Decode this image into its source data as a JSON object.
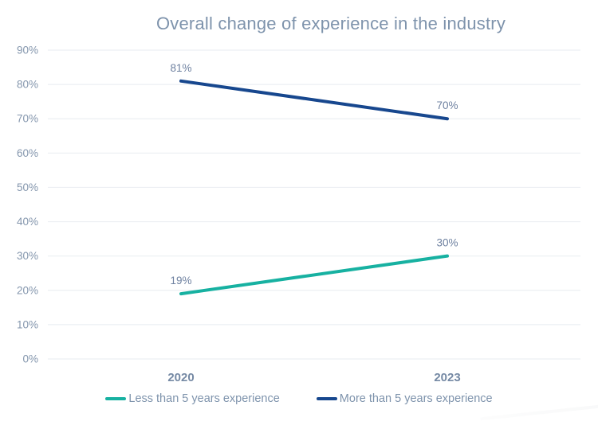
{
  "title": "Overall change of experience in the industry",
  "colors": {
    "title_text": "#7E93AC",
    "axis_label_text": "#8496AD",
    "data_label_text": "#6E81A0",
    "x_label_text": "#7589A4",
    "gridline": "#ECEFF3",
    "background": "#FFFFFF"
  },
  "chart_data": {
    "type": "line",
    "title": "Overall change of experience in the industry",
    "x": [
      "2020",
      "2023"
    ],
    "series": [
      {
        "name": "Less than 5 years experience",
        "values": [
          19,
          30
        ],
        "labels": [
          "19%",
          "30%"
        ],
        "color": "#17B1A1"
      },
      {
        "name": "More than 5 years experience",
        "values": [
          81,
          70
        ],
        "labels": [
          "81%",
          "70%"
        ],
        "color": "#17478E"
      }
    ],
    "y_ticks": [
      {
        "value": 0,
        "label": "0%"
      },
      {
        "value": 10,
        "label": "10%"
      },
      {
        "value": 20,
        "label": "20%"
      },
      {
        "value": 30,
        "label": "30%"
      },
      {
        "value": 40,
        "label": "40%"
      },
      {
        "value": 50,
        "label": "50%"
      },
      {
        "value": 60,
        "label": "60%"
      },
      {
        "value": 70,
        "label": "70%"
      },
      {
        "value": 80,
        "label": "80%"
      },
      {
        "value": 90,
        "label": "90%"
      }
    ],
    "ylim": [
      0,
      90
    ],
    "xlabel": "",
    "ylabel": "",
    "grid": true,
    "legend_position": "bottom"
  }
}
